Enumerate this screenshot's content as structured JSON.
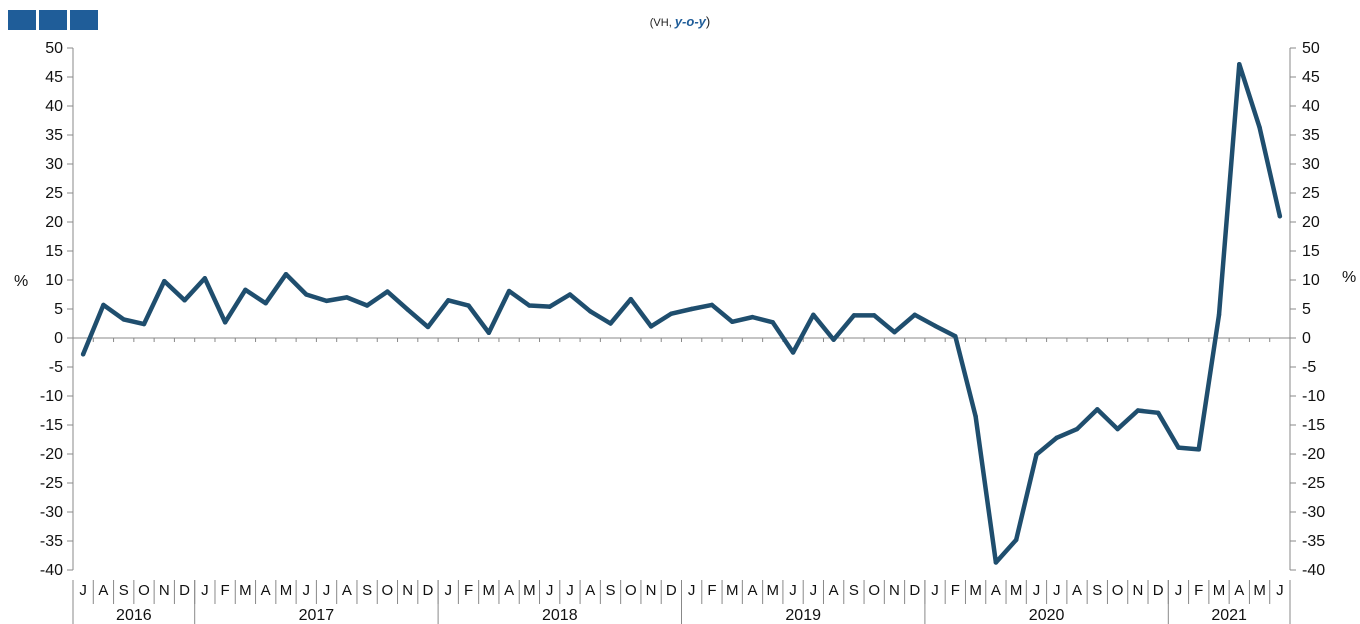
{
  "header": {
    "subtitle_prefix": "(VH, ",
    "subtitle_emph": "y-o-y",
    "subtitle_suffix": ")"
  },
  "colors": {
    "line": "#1f4e6e",
    "logo": "#1f5d99",
    "axis": "#888888"
  },
  "chart_data": {
    "type": "line",
    "title": "",
    "ylabel_left": "%",
    "ylabel_right": "%",
    "ylim": [
      -40,
      50
    ],
    "yticks": [
      50,
      45,
      40,
      35,
      30,
      25,
      20,
      15,
      10,
      5,
      0,
      -5,
      -10,
      -15,
      -20,
      -25,
      -30,
      -35,
      -40
    ],
    "grid": false,
    "months": [
      "J",
      "A",
      "S",
      "O",
      "N",
      "D",
      "J",
      "F",
      "M",
      "A",
      "M",
      "J",
      "J",
      "A",
      "S",
      "O",
      "N",
      "D",
      "J",
      "F",
      "M",
      "A",
      "M",
      "J",
      "J",
      "A",
      "S",
      "O",
      "N",
      "D",
      "J",
      "F",
      "M",
      "A",
      "M",
      "J",
      "J",
      "A",
      "S",
      "O",
      "N",
      "D",
      "J",
      "F",
      "M",
      "A",
      "M",
      "J",
      "J",
      "A",
      "S",
      "O",
      "N",
      "D",
      "J",
      "F",
      "M",
      "A",
      "M",
      "J"
    ],
    "years": [
      {
        "label": "2016",
        "start": 0,
        "end": 6
      },
      {
        "label": "2017",
        "start": 6,
        "end": 18
      },
      {
        "label": "2018",
        "start": 18,
        "end": 30
      },
      {
        "label": "2019",
        "start": 30,
        "end": 42
      },
      {
        "label": "2020",
        "start": 42,
        "end": 54
      },
      {
        "label": "2021",
        "start": 54,
        "end": 60
      }
    ],
    "series": [
      {
        "values": [
          -2.8,
          5.7,
          3.2,
          2.4,
          9.8,
          6.5,
          10.3,
          2.7,
          8.3,
          6.0,
          11.0,
          7.5,
          6.4,
          7.0,
          5.6,
          8.0,
          4.9,
          1.9,
          6.5,
          5.6,
          0.9,
          8.1,
          5.6,
          5.4,
          7.5,
          4.6,
          2.5,
          6.7,
          2.0,
          4.2,
          5.0,
          5.7,
          2.8,
          3.6,
          2.7,
          -2.5,
          4.0,
          -0.3,
          3.9,
          3.9,
          1.0,
          4.0,
          2.1,
          0.3,
          -13.5,
          -38.7,
          -34.8,
          -20.1,
          -17.2,
          -15.7,
          -12.3,
          -15.7,
          -12.5,
          -12.9,
          -18.9,
          -19.2,
          4.0,
          47.2,
          36.3,
          21.0
        ]
      }
    ]
  }
}
